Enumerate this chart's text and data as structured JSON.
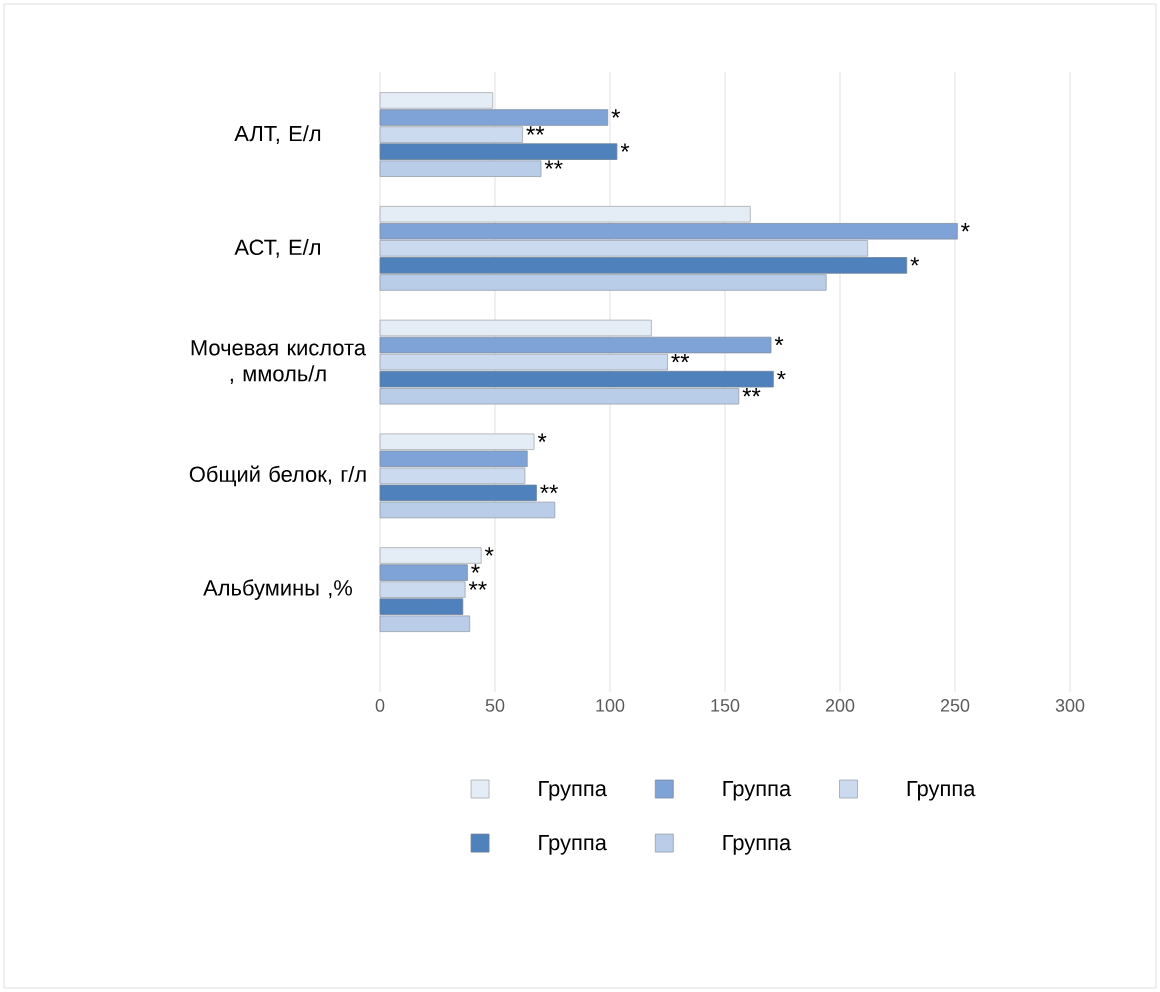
{
  "chart_data": {
    "type": "bar",
    "orientation": "horizontal",
    "categories": [
      "АЛТ, Е/л",
      "АСТ, Е/л",
      "Мочевая кислота , ммоль/л",
      "Общий белок, г/л",
      "Альбумины ,%"
    ],
    "series": [
      {
        "name": "Группа",
        "color": "#e4ecf6",
        "values": [
          49,
          161,
          118,
          67,
          44
        ],
        "value_labels": [
          null,
          null,
          null,
          "*",
          "*"
        ]
      },
      {
        "name": "Группа",
        "color": "#7fa3d6",
        "values": [
          99,
          251,
          170,
          64,
          38
        ],
        "value_labels": [
          "*",
          "*",
          "*",
          null,
          "*"
        ]
      },
      {
        "name": "Группа",
        "color": "#cbdaef",
        "values": [
          62,
          212,
          125,
          63,
          37
        ],
        "value_labels": [
          "**",
          null,
          "**",
          null,
          "**"
        ]
      },
      {
        "name": "Группа",
        "color": "#4f81bd",
        "values": [
          103,
          229,
          171,
          68,
          36
        ],
        "value_labels": [
          "*",
          "*",
          "*",
          "**",
          null
        ]
      },
      {
        "name": "Группа",
        "color": "#b9cde9",
        "values": [
          70,
          194,
          156,
          76,
          39
        ],
        "value_labels": [
          "**",
          null,
          "**",
          null,
          null
        ]
      }
    ],
    "xlim": [
      0,
      300
    ],
    "xticks": [
      0,
      50,
      100,
      150,
      200,
      250,
      300
    ],
    "grid": "x",
    "legend": "bottom"
  }
}
